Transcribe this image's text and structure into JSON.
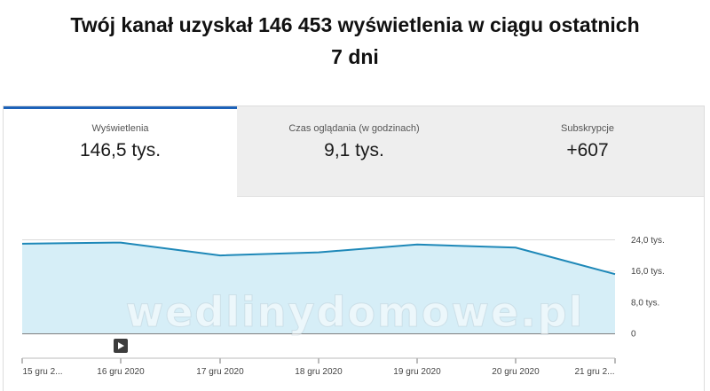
{
  "header": {
    "line1": "Twój kanał uzyskał 146 453 wyświetlenia w ciągu ostatnich",
    "line2": "7 dni"
  },
  "tabs": [
    {
      "label": "Wyświetlenia",
      "value": "146,5 tys.",
      "active": true
    },
    {
      "label": "Czas oglądania (w godzinach)",
      "value": "9,1 tys.",
      "active": false
    },
    {
      "label": "Subskrypcje",
      "value": "+607",
      "active": false
    }
  ],
  "chart_data": {
    "type": "area",
    "x": [
      "15 gru 2...",
      "16 gru 2020",
      "17 gru 2020",
      "18 gru 2020",
      "19 gru 2020",
      "20 gru 2020",
      "21 gru 2..."
    ],
    "series": [
      {
        "values": [
          23000,
          23300,
          20000,
          20800,
          22800,
          22000,
          15200
        ]
      }
    ],
    "y_ticks": [
      {
        "value": 24000,
        "label": "24,0 tys."
      },
      {
        "value": 16000,
        "label": "16,0 tys."
      },
      {
        "value": 8000,
        "label": "8,0 tys."
      },
      {
        "value": 0,
        "label": "0"
      }
    ],
    "ylim": [
      0,
      24000
    ],
    "grid": true,
    "colors": {
      "line": "#1e88b8",
      "fill": "#d6eef7",
      "grid": "#d9d9d9",
      "axis": "#333333"
    }
  },
  "watermark": "wedlinydomowe.pl",
  "icons": {
    "play": "play-icon"
  }
}
